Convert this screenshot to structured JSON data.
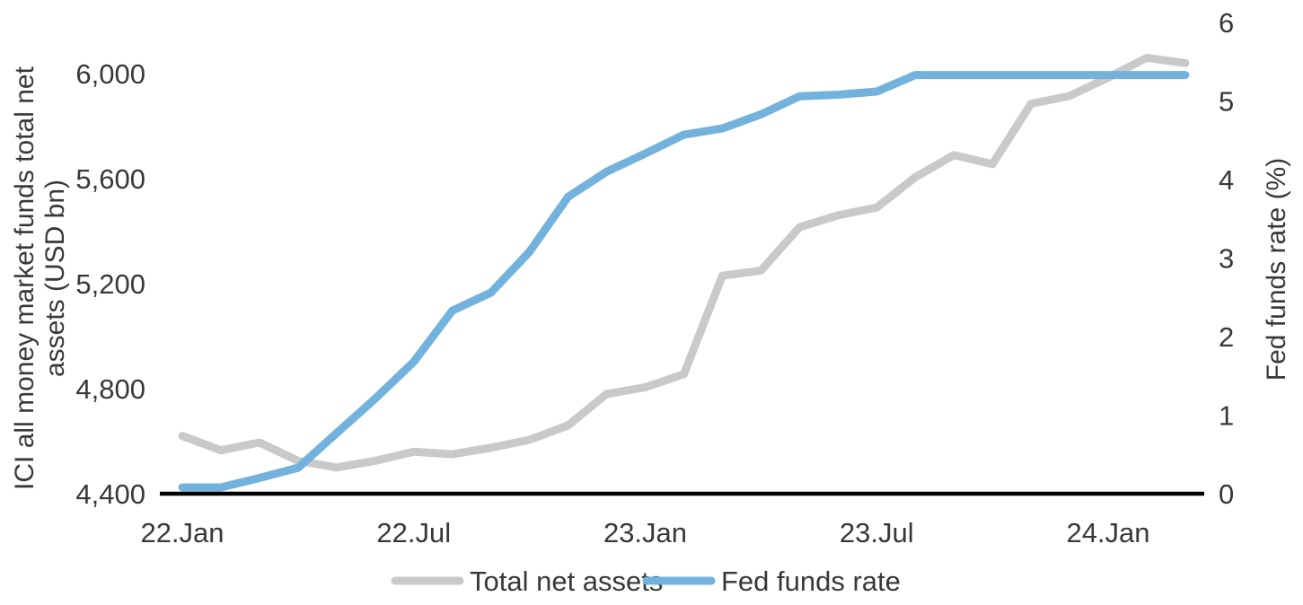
{
  "chart_data": {
    "type": "line",
    "title": "",
    "grid": "off",
    "legend_position": "bottom",
    "x_months": [
      "22.Jan",
      "22.Feb",
      "22.Mar",
      "22.Apr",
      "22.May",
      "22.Jun",
      "22.Jul",
      "22.Aug",
      "22.Sep",
      "22.Oct",
      "22.Nov",
      "22.Dec",
      "23.Jan",
      "23.Feb",
      "23.Mar",
      "23.Apr",
      "23.May",
      "23.Jun",
      "23.Jul",
      "23.Aug",
      "23.Sep",
      "23.Oct",
      "23.Nov",
      "23.Dec",
      "24.Jan",
      "24.Feb",
      "24.Mar"
    ],
    "x_tick_labels": [
      "22.Jan",
      "22.Jul",
      "23.Jan",
      "23.Jul",
      "24.Jan"
    ],
    "x_tick_month_indices": [
      0,
      6,
      12,
      18,
      24
    ],
    "left_axis": {
      "label": "ICI all money market funds total net assets (USD bn)",
      "label_line1": "ICI all money market funds total net",
      "label_line2": "assets (USD bn)",
      "ticks": [
        4400,
        4800,
        5200,
        5600,
        6000
      ],
      "tick_labels": [
        "4,400",
        "4,800",
        "5,200",
        "5,600",
        "6,000"
      ],
      "range": [
        4400,
        6000
      ]
    },
    "right_axis": {
      "label": "Fed funds rate (%)",
      "ticks": [
        0,
        1,
        2,
        3,
        4,
        5,
        6
      ],
      "tick_labels": [
        "0",
        "1",
        "2",
        "3",
        "4",
        "5",
        "6"
      ],
      "range": [
        0,
        6
      ]
    },
    "series": [
      {
        "name": "Total net assets",
        "axis": "left",
        "color": "#c9c9c9",
        "values": [
          4620,
          4565,
          4595,
          4525,
          4500,
          4525,
          4560,
          4550,
          4575,
          4605,
          4660,
          4780,
          4805,
          4855,
          5230,
          5250,
          5415,
          5460,
          5490,
          5605,
          5690,
          5655,
          5885,
          5915,
          5985,
          6060,
          6040
        ]
      },
      {
        "name": "Fed funds rate",
        "axis": "right",
        "color": "#72b2dc",
        "values": [
          0.08,
          0.08,
          0.2,
          0.33,
          0.77,
          1.21,
          1.68,
          2.33,
          2.56,
          3.08,
          3.78,
          4.1,
          4.33,
          4.57,
          4.65,
          4.83,
          5.06,
          5.08,
          5.12,
          5.33,
          5.33,
          5.33,
          5.33,
          5.33,
          5.33,
          5.33,
          5.33
        ]
      }
    ],
    "axis_line_color": "#000000",
    "text_color": "#383838"
  }
}
